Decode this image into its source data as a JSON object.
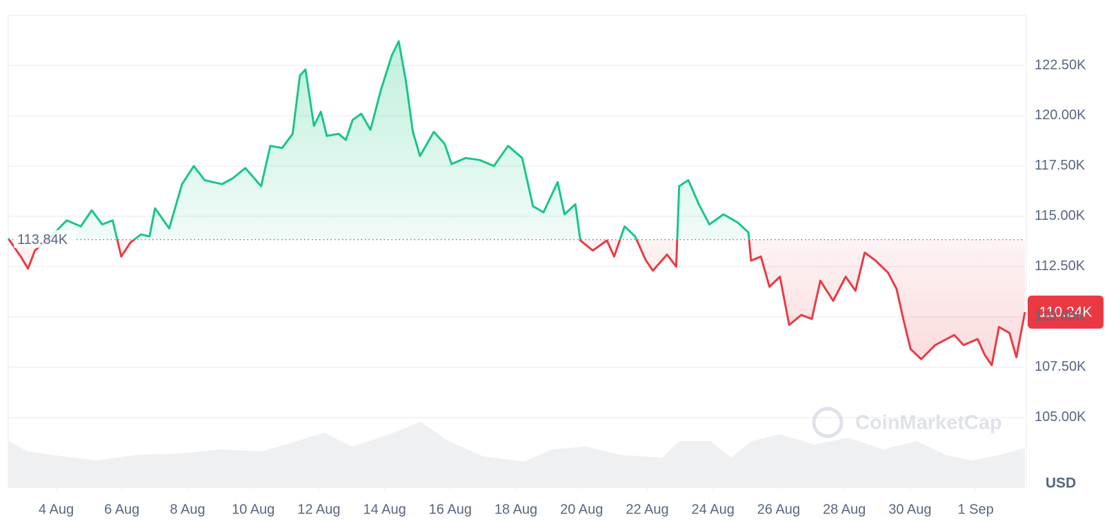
{
  "chart_data": {
    "type": "price-line",
    "up_color": "#16c784",
    "down_color": "#ea3943",
    "grid": true,
    "y_unit": "USD",
    "watermark": "CoinMarketCap",
    "reference": {
      "value": 113840,
      "label": "113.84K"
    },
    "last_price": {
      "value": 110240,
      "label": "110.24K"
    },
    "xlim": [
      2.54,
      33.5
    ],
    "xticks": [
      {
        "value": 4,
        "label": "4 Aug"
      },
      {
        "value": 6,
        "label": "6 Aug"
      },
      {
        "value": 8,
        "label": "8 Aug"
      },
      {
        "value": 10,
        "label": "10 Aug"
      },
      {
        "value": 12,
        "label": "12 Aug"
      },
      {
        "value": 14,
        "label": "14 Aug"
      },
      {
        "value": 16,
        "label": "16 Aug"
      },
      {
        "value": 18,
        "label": "18 Aug"
      },
      {
        "value": 20,
        "label": "20 Aug"
      },
      {
        "value": 22,
        "label": "22 Aug"
      },
      {
        "value": 24,
        "label": "24 Aug"
      },
      {
        "value": 26,
        "label": "26 Aug"
      },
      {
        "value": 28,
        "label": "28 Aug"
      },
      {
        "value": 30,
        "label": "30 Aug"
      },
      {
        "value": 32,
        "label": "1 Sep"
      }
    ],
    "ylim": [
      101500,
      125000
    ],
    "yticks": [
      {
        "value": 105000,
        "label": "105.00K"
      },
      {
        "value": 107500,
        "label": "107.50K"
      },
      {
        "value": 110000,
        "label": "110.00K"
      },
      {
        "value": 112500,
        "label": "112.50K"
      },
      {
        "value": 115000,
        "label": "115.00K"
      },
      {
        "value": 117500,
        "label": "117.50K"
      },
      {
        "value": 120000,
        "label": "120.00K"
      },
      {
        "value": 122500,
        "label": "122.50K"
      }
    ],
    "x": [
      2.54,
      2.92,
      3.14,
      3.35,
      3.78,
      4.32,
      4.75,
      5.08,
      5.4,
      5.72,
      5.98,
      6.26,
      6.58,
      6.84,
      7.01,
      7.44,
      7.83,
      8.19,
      8.52,
      9.05,
      9.38,
      9.76,
      10.24,
      10.52,
      10.88,
      11.2,
      11.42,
      11.59,
      11.85,
      12.06,
      12.24,
      12.6,
      12.82,
      13.03,
      13.29,
      13.57,
      13.89,
      14.22,
      14.43,
      14.65,
      14.86,
      15.08,
      15.5,
      15.83,
      16.04,
      16.47,
      16.9,
      17.33,
      17.76,
      18.19,
      18.52,
      18.84,
      19.27,
      19.48,
      19.81,
      19.96,
      20.34,
      20.77,
      20.99,
      21.31,
      21.63,
      21.96,
      22.17,
      22.6,
      22.88,
      22.97,
      23.25,
      23.57,
      23.89,
      24.32,
      24.75,
      25.08,
      25.16,
      25.46,
      25.72,
      26.04,
      26.32,
      26.69,
      27.01,
      27.27,
      27.66,
      28.04,
      28.34,
      28.62,
      28.95,
      29.33,
      29.59,
      29.81,
      30.02,
      30.34,
      30.77,
      31.35,
      31.63,
      32.06,
      32.28,
      32.49,
      32.71,
      33.03,
      33.24,
      33.5
    ],
    "values": [
      113900,
      113000,
      112400,
      113300,
      113900,
      114800,
      114500,
      115300,
      114600,
      114800,
      113000,
      113700,
      114100,
      114000,
      115400,
      114400,
      116600,
      117500,
      116800,
      116600,
      116900,
      117400,
      116500,
      118500,
      118400,
      119100,
      122000,
      122300,
      119500,
      120200,
      119000,
      119100,
      118800,
      119800,
      120100,
      119300,
      121300,
      123000,
      123700,
      121700,
      119200,
      118000,
      119200,
      118600,
      117600,
      117900,
      117800,
      117500,
      118500,
      117900,
      115500,
      115200,
      116700,
      115100,
      115600,
      113800,
      113300,
      113800,
      113000,
      114500,
      114000,
      112800,
      112300,
      113100,
      112500,
      116500,
      116800,
      115600,
      114600,
      115100,
      114700,
      114200,
      112800,
      113000,
      111500,
      112000,
      109600,
      110100,
      109900,
      111800,
      110800,
      112000,
      111300,
      113200,
      112800,
      112200,
      111400,
      109800,
      108400,
      107900,
      108600,
      109100,
      108600,
      108900,
      108100,
      107600,
      109500,
      109200,
      108000,
      110240
    ]
  }
}
